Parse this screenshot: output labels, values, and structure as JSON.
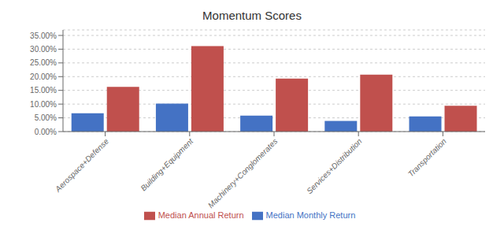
{
  "chart_data": {
    "type": "bar",
    "title": "Momentum Scores",
    "categories": [
      "Aerospace+Defense",
      "Building+Equipment",
      "Machinery+Conglomerates",
      "Services+Distribution",
      "Transportation"
    ],
    "series": [
      {
        "name": "Median Monthly Return",
        "color": "#4472C4",
        "values": [
          0.067,
          0.102,
          0.058,
          0.039,
          0.055
        ]
      },
      {
        "name": "Median Annual Return",
        "color": "#C0504D",
        "values": [
          0.163,
          0.311,
          0.193,
          0.207,
          0.094
        ]
      }
    ],
    "ylim": [
      0,
      0.37
    ],
    "yticks": [
      {
        "value": 0.0,
        "label": "0.00%"
      },
      {
        "value": 0.05,
        "label": "5.00%"
      },
      {
        "value": 0.1,
        "label": "10.00%"
      },
      {
        "value": 0.15,
        "label": "15.00%"
      },
      {
        "value": 0.2,
        "label": "20.00%"
      },
      {
        "value": 0.25,
        "label": "25.00%"
      },
      {
        "value": 0.3,
        "label": "30.00%"
      },
      {
        "value": 0.35,
        "label": "35.00%"
      }
    ],
    "grid": true,
    "legend": "bottom"
  }
}
